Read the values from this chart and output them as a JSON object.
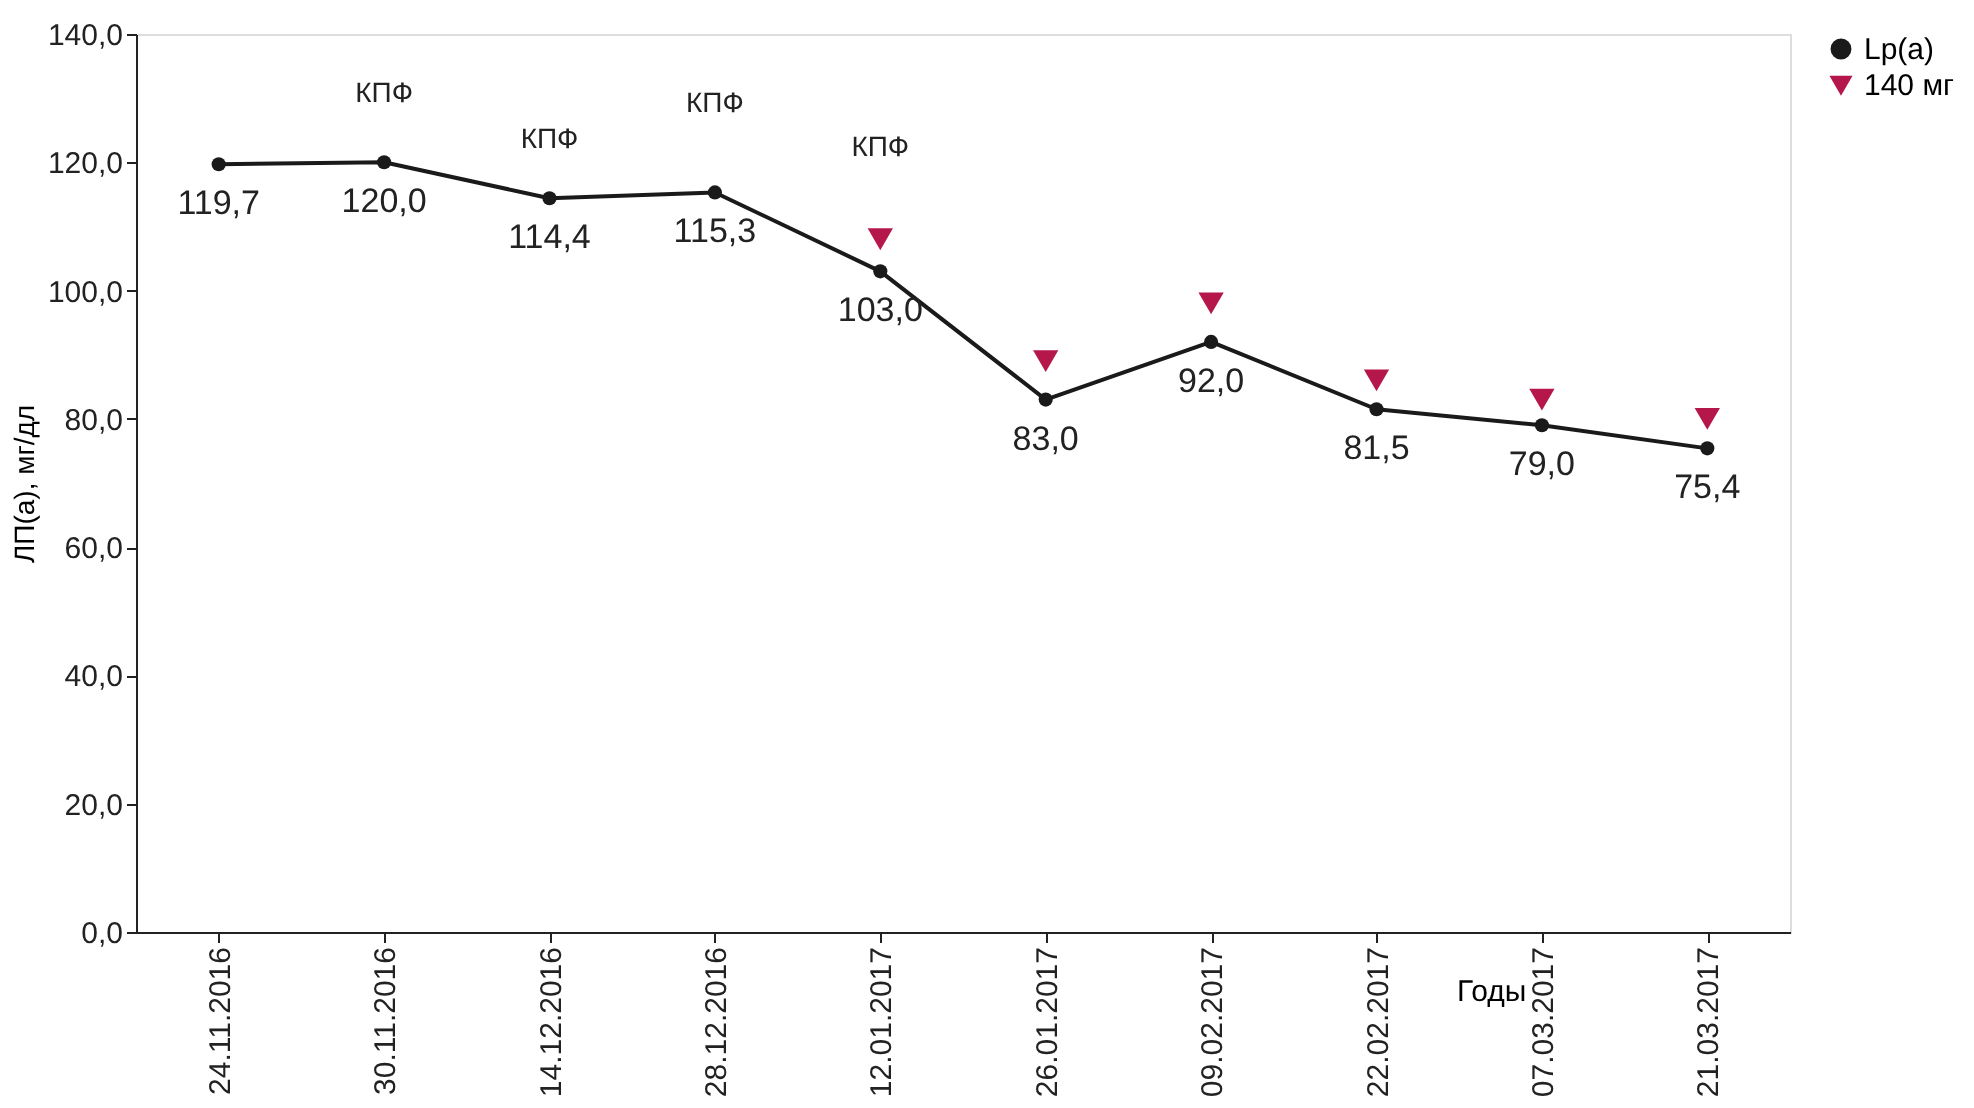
{
  "chart_data": {
    "type": "line",
    "ylabel": "ЛП(а), мг/дл",
    "xlabel": "Годы",
    "categories": [
      "24.11.2016",
      "30.11.2016",
      "14.12.2016",
      "28.12.2016",
      "12.01.2017",
      "26.01.2017",
      "09.02.2017",
      "22.02.2017",
      "07.03.2017",
      "21.03.2017"
    ],
    "series": [
      {
        "name": "Lp(a)",
        "color": "#1a1a1a",
        "marker": "circle",
        "values": [
          119.7,
          120.0,
          114.4,
          115.3,
          103.0,
          83.0,
          92.0,
          81.5,
          79.0,
          75.4
        ],
        "value_labels": [
          "119,7",
          "120,0",
          "114,4",
          "115,3",
          "103,0",
          "83,0",
          "92,0",
          "81,5",
          "79,0",
          "75,4"
        ]
      },
      {
        "name": "140 мг",
        "color": "#b5174b",
        "type": "scatter",
        "marker": "triangle",
        "values": [
          null,
          null,
          null,
          null,
          108,
          89,
          98,
          86,
          83,
          80
        ]
      }
    ],
    "ylim": [
      0,
      140
    ],
    "yticks": [
      {
        "value": 0,
        "label": "0,0"
      },
      {
        "value": 20,
        "label": "20,0"
      },
      {
        "value": 40,
        "label": "40,0"
      },
      {
        "value": 60,
        "label": "60,0"
      },
      {
        "value": 80,
        "label": "80,0"
      },
      {
        "value": 100,
        "label": "100,0"
      },
      {
        "value": 120,
        "label": "120,0"
      },
      {
        "value": 140,
        "label": "140,0"
      }
    ],
    "annotations": [
      "КПФ",
      "КПФ",
      "КПФ",
      "КПФ"
    ],
    "legend": "right",
    "grid": false
  }
}
